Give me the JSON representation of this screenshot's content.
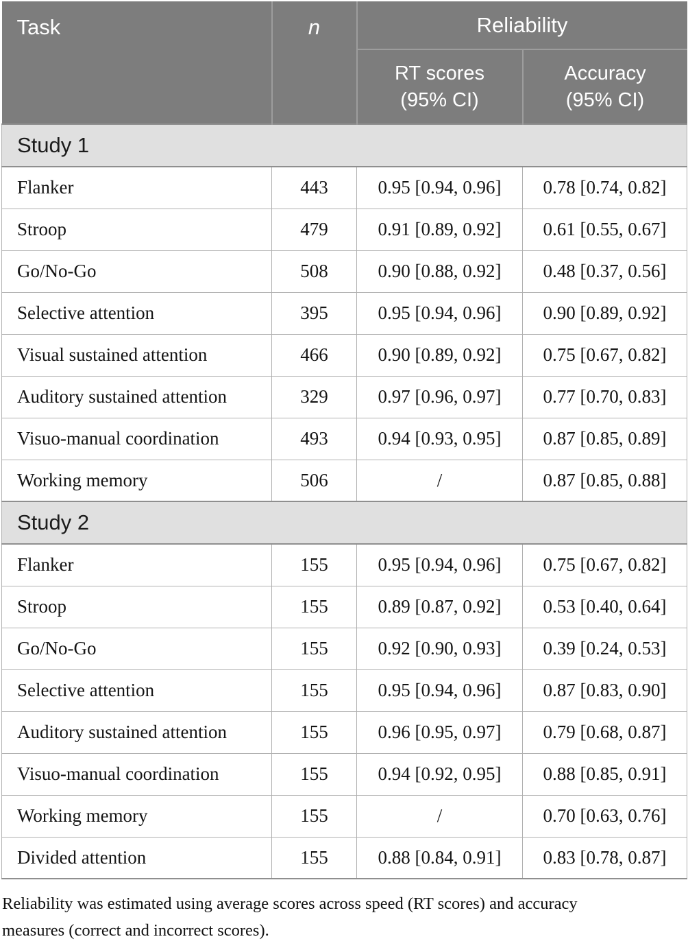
{
  "table": {
    "header": {
      "task": "Task",
      "n": "n",
      "reliability": "Reliability",
      "rt": "RT scores\n(95% CI)",
      "accuracy": "Accuracy\n(95% CI)"
    },
    "sections": [
      {
        "label": "Study 1",
        "rows": [
          [
            "Flanker",
            "443",
            "0.95 [0.94, 0.96]",
            "0.78 [0.74, 0.82]"
          ],
          [
            "Stroop",
            "479",
            "0.91 [0.89, 0.92]",
            "0.61 [0.55, 0.67]"
          ],
          [
            "Go/No-Go",
            "508",
            "0.90 [0.88, 0.92]",
            "0.48 [0.37, 0.56]"
          ],
          [
            "Selective attention",
            "395",
            "0.95 [0.94, 0.96]",
            "0.90 [0.89, 0.92]"
          ],
          [
            "Visual sustained attention",
            "466",
            "0.90 [0.89, 0.92]",
            "0.75 [0.67, 0.82]"
          ],
          [
            "Auditory sustained attention",
            "329",
            "0.97 [0.96, 0.97]",
            "0.77 [0.70, 0.83]"
          ],
          [
            "Visuo-manual coordination",
            "493",
            "0.94 [0.93, 0.95]",
            "0.87 [0.85, 0.89]"
          ],
          [
            "Working memory",
            "506",
            "/",
            "0.87 [0.85, 0.88]"
          ]
        ]
      },
      {
        "label": "Study 2",
        "rows": [
          [
            "Flanker",
            "155",
            "0.95 [0.94, 0.96]",
            "0.75 [0.67, 0.82]"
          ],
          [
            "Stroop",
            "155",
            "0.89 [0.87, 0.92]",
            "0.53 [0.40, 0.64]"
          ],
          [
            "Go/No-Go",
            "155",
            "0.92 [0.90, 0.93]",
            "0.39 [0.24, 0.53]"
          ],
          [
            "Selective attention",
            "155",
            "0.95 [0.94, 0.96]",
            "0.87 [0.83, 0.90]"
          ],
          [
            "Auditory sustained attention",
            "155",
            "0.96 [0.95, 0.97]",
            "0.79 [0.68, 0.87]"
          ],
          [
            "Visuo-manual coordination",
            "155",
            "0.94 [0.92, 0.95]",
            "0.88 [0.85, 0.91]"
          ],
          [
            "Working memory",
            "155",
            "/",
            "0.70 [0.63, 0.76]"
          ],
          [
            "Divided attention",
            "155",
            "0.88 [0.84, 0.91]",
            "0.83 [0.78, 0.87]"
          ]
        ]
      }
    ]
  },
  "footnote": "Reliability was estimated using average scores across speed (RT scores) and accuracy measures (correct and incorrect scores).",
  "colors": {
    "header_bg": "#7d7d7d",
    "header_text": "#ffffff",
    "header_divider": "#9d9d9d",
    "section_bg": "#e0e0e0",
    "row_border": "#b0b0b0",
    "body_text": "#141414"
  }
}
